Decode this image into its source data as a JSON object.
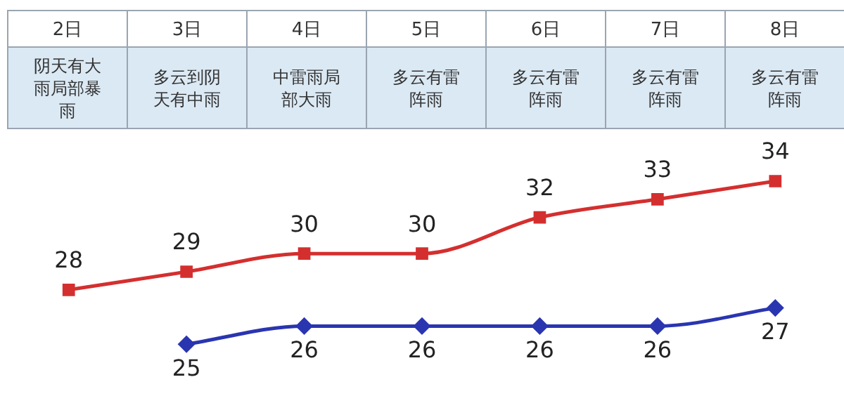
{
  "chart_data": {
    "type": "line",
    "categories": [
      "2日",
      "3日",
      "4日",
      "5日",
      "6日",
      "7日",
      "8日"
    ],
    "annotations": [
      "阴天有大雨局部暴雨",
      "多云到阴天有中雨",
      "中雷雨局部大雨",
      "多云有雷阵雨",
      "多云有雷阵雨",
      "多云有雷阵雨",
      "多云有雷阵雨"
    ],
    "series": [
      {
        "color": "#d42f2f",
        "marker": "square",
        "values": [
          28,
          29,
          30,
          30,
          32,
          33,
          34
        ]
      },
      {
        "color": "#2a35b0",
        "marker": "diamond",
        "values": [
          null,
          25,
          26,
          26,
          26,
          26,
          27
        ]
      }
    ],
    "tick_labels": false,
    "legend": false,
    "data_labels": true
  }
}
